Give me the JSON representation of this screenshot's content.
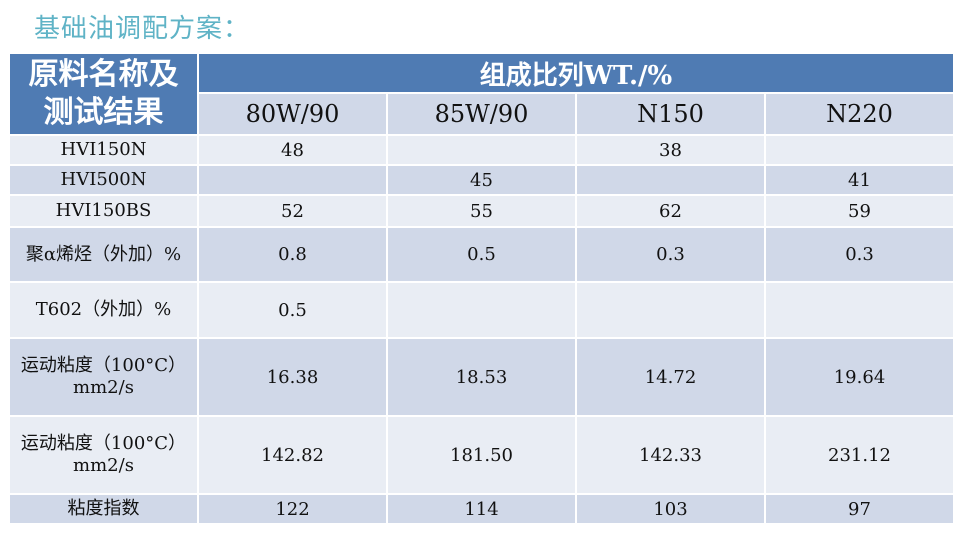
{
  "title": "基础油调配方案：",
  "table": {
    "corner_line1": "原料名称及",
    "corner_line2": "测试结果",
    "group_header": "组成比列WT./%",
    "columns": [
      "80W/90",
      "85W/90",
      "N150",
      "N220"
    ],
    "rows": [
      {
        "label": "HVI150N",
        "values": [
          "48",
          "",
          "38",
          ""
        ]
      },
      {
        "label": "HVI500N",
        "values": [
          "",
          "45",
          "",
          "41"
        ]
      },
      {
        "label": "HVI150BS",
        "values": [
          "52",
          "55",
          "62",
          "59"
        ]
      },
      {
        "label": "聚α烯烃（外加）%",
        "values": [
          "0.8",
          "0.5",
          "0.3",
          "0.3"
        ]
      },
      {
        "label": "T602（外加）%",
        "values": [
          "0.5",
          "",
          "",
          ""
        ]
      },
      {
        "label": "运动粘度（100°C）mm2/s",
        "values": [
          "16.38",
          "18.53",
          "14.72",
          "19.64"
        ]
      },
      {
        "label": "运动粘度（100°C）mm2/s",
        "values": [
          "142.82",
          "181.50",
          "142.33",
          "231.12"
        ]
      },
      {
        "label": "粘度指数",
        "values": [
          "122",
          "114",
          "103",
          "97"
        ]
      }
    ]
  },
  "colors": {
    "header_blue": "#4f7bb3",
    "row_shade": "#d0d8e8",
    "row_light": "#e9edf4",
    "title_teal": "#5fb3c6"
  }
}
